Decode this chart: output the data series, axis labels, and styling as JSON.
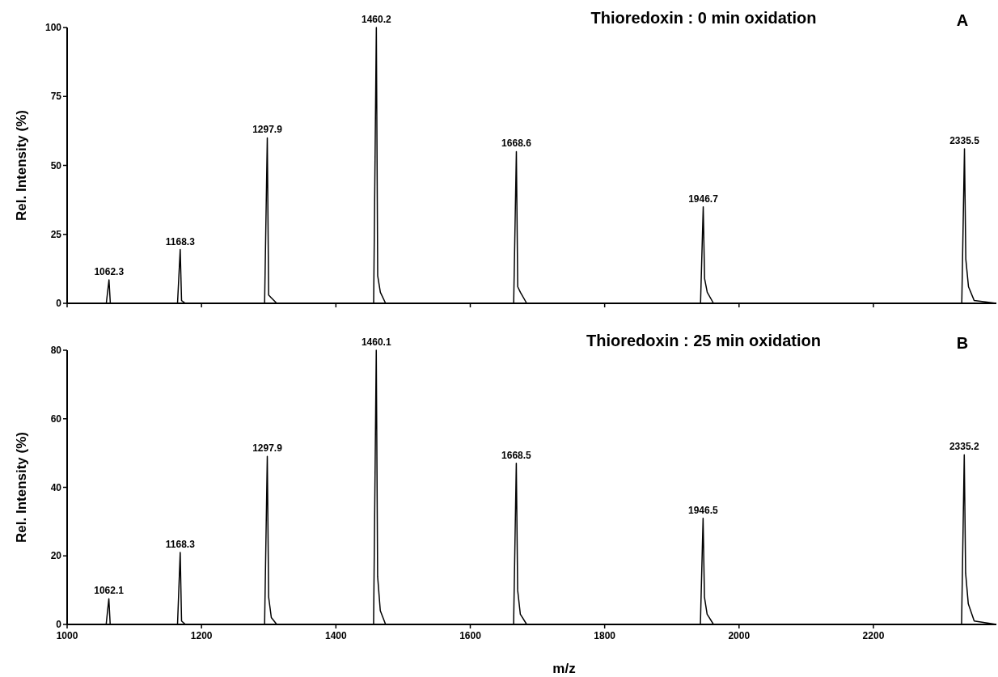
{
  "chart_data": [
    {
      "type": "line",
      "title": "Thioredoxin : 0 min oxidation",
      "ylabel": "Rel. Intensity (%)",
      "xlim": [
        1000,
        2383
      ],
      "xticks": [
        {
          "value": 1000,
          "label": null
        },
        {
          "value": 1200,
          "label": null
        },
        {
          "value": 1400,
          "label": null
        },
        {
          "value": 1600,
          "label": null
        },
        {
          "value": 1800,
          "label": null
        },
        {
          "value": 2000,
          "label": null
        },
        {
          "value": 2200,
          "label": null
        }
      ],
      "ylim": [
        0,
        100
      ],
      "yticks": [
        0,
        25,
        50,
        75,
        100
      ],
      "tick_labels": "y",
      "marker": "none",
      "line_style": "solid",
      "series": [
        {
          "color": "#000000",
          "x": [
            1000,
            1058.3,
            1062.3,
            1064.3,
            1070,
            1164.3,
            1168.3,
            1170.3,
            1176,
            1293.9,
            1297.9,
            1299.9,
            1303.9,
            1312,
            1456.2,
            1460.2,
            1462.2,
            1466.2,
            1474,
            1664.6,
            1668.6,
            1670.6,
            1674.6,
            1684,
            1942.7,
            1946.7,
            1948.7,
            1952.7,
            1962,
            2331.5,
            2335.5,
            2337.5,
            2341.5,
            2350,
            2383
          ],
          "values": [
            0,
            0,
            8.5,
            0,
            0,
            0,
            19.5,
            1,
            0,
            0,
            60,
            3,
            2,
            0,
            0,
            100,
            10,
            4,
            0,
            0,
            55,
            6,
            4,
            0,
            0,
            35,
            9,
            4,
            0,
            0,
            56,
            16,
            6,
            1,
            0
          ]
        }
      ],
      "annotations": [
        "A",
        {
          "text": "1062.3",
          "x": 1062.3,
          "y": 8.5
        },
        {
          "text": "1168.3",
          "x": 1168.3,
          "y": 19.5
        },
        {
          "text": "1297.9",
          "x": 1297.9,
          "y": 60
        },
        {
          "text": "1460.2",
          "x": 1460.2,
          "y": 100
        },
        {
          "text": "1668.6",
          "x": 1668.6,
          "y": 55
        },
        {
          "text": "1946.7",
          "x": 1946.7,
          "y": 35
        },
        {
          "text": "2335.5",
          "x": 2335.5,
          "y": 56
        }
      ]
    },
    {
      "type": "line",
      "title": "Thioredoxin : 25 min oxidation",
      "ylabel": "Rel. Intensity (%)",
      "xlabel": "m/z",
      "xlim": [
        1000,
        2383
      ],
      "xticks": [
        1000,
        1200,
        1400,
        1600,
        1800,
        2000,
        2200
      ],
      "ylim": [
        0,
        80
      ],
      "yticks": [
        0,
        20,
        40,
        60,
        80
      ],
      "marker": "none",
      "line_style": "solid",
      "series": [
        {
          "color": "#000000",
          "x": [
            1000,
            1058.1,
            1062.1,
            1064.1,
            1070,
            1164.3,
            1168.3,
            1170.3,
            1176,
            1293.9,
            1297.9,
            1299.9,
            1303.9,
            1312,
            1456.1,
            1460.1,
            1462.1,
            1466.1,
            1474,
            1664.5,
            1668.5,
            1670.5,
            1674.5,
            1684,
            1942.5,
            1946.5,
            1948.5,
            1952.5,
            1962,
            2331.2,
            2335.2,
            2337.2,
            2341.2,
            2350,
            2383
          ],
          "values": [
            0,
            0,
            7.5,
            0,
            0,
            0,
            21,
            1,
            0,
            0,
            49,
            8,
            2,
            0,
            0,
            80,
            14,
            4,
            0,
            0,
            47,
            10,
            3,
            0,
            0,
            31,
            8,
            3,
            0,
            0,
            49.5,
            15,
            6,
            1,
            0
          ]
        }
      ],
      "annotations": [
        "B",
        {
          "text": "1062.1",
          "x": 1062.1,
          "y": 7.5
        },
        {
          "text": "1168.3",
          "x": 1168.3,
          "y": 21
        },
        {
          "text": "1297.9",
          "x": 1297.9,
          "y": 49
        },
        {
          "text": "1460.1",
          "x": 1460.1,
          "y": 80
        },
        {
          "text": "1668.5",
          "x": 1668.5,
          "y": 47
        },
        {
          "text": "1946.5",
          "x": 1946.5,
          "y": 31
        },
        {
          "text": "2335.2",
          "x": 2335.2,
          "y": 49.5
        }
      ]
    }
  ]
}
